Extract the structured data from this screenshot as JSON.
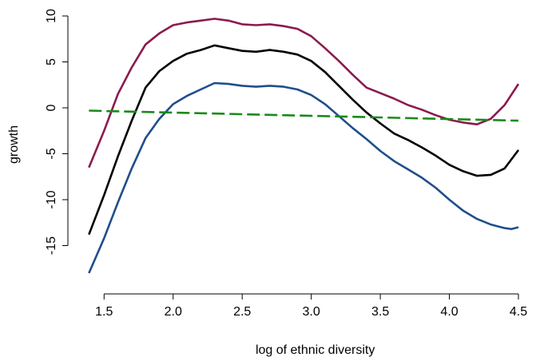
{
  "chart_data": {
    "type": "line",
    "title": "",
    "xlabel": "log of ethnic diversity",
    "ylabel": "growth",
    "xlim": [
      1.4,
      4.5
    ],
    "ylim": [
      -18,
      10
    ],
    "xticks": [
      1.5,
      2.0,
      2.5,
      3.0,
      3.5,
      4.0,
      4.5
    ],
    "xtick_labels": [
      "1.5",
      "2.0",
      "2.5",
      "3.0",
      "3.5",
      "4.0",
      "4.5"
    ],
    "yticks": [
      10,
      5,
      0,
      -5,
      -10,
      -15
    ],
    "ytick_labels": [
      "10",
      "5",
      "0",
      "-5",
      "-10",
      "-15"
    ],
    "grid": false,
    "series": [
      {
        "color": "#8b1a4f",
        "style": "solid",
        "x": [
          1.39,
          1.5,
          1.6,
          1.7,
          1.8,
          1.9,
          2.0,
          2.1,
          2.2,
          2.3,
          2.4,
          2.5,
          2.6,
          2.7,
          2.8,
          2.9,
          3.0,
          3.1,
          3.2,
          3.3,
          3.4,
          3.5,
          3.6,
          3.7,
          3.8,
          3.9,
          4.0,
          4.1,
          4.2,
          4.3,
          4.4,
          4.5
        ],
        "y": [
          -6.5,
          -2.5,
          1.5,
          4.4,
          6.9,
          8.1,
          9.0,
          9.3,
          9.5,
          9.7,
          9.5,
          9.1,
          9.0,
          9.1,
          8.9,
          8.6,
          7.8,
          6.5,
          5.1,
          3.6,
          2.2,
          1.6,
          1.0,
          0.3,
          -0.2,
          -0.8,
          -1.3,
          -1.6,
          -1.8,
          -1.2,
          0.3,
          2.6
        ]
      },
      {
        "color": "#000000",
        "style": "solid",
        "x": [
          1.39,
          1.5,
          1.6,
          1.7,
          1.8,
          1.9,
          2.0,
          2.1,
          2.2,
          2.3,
          2.4,
          2.5,
          2.6,
          2.7,
          2.8,
          2.9,
          3.0,
          3.1,
          3.2,
          3.3,
          3.4,
          3.5,
          3.6,
          3.7,
          3.8,
          3.9,
          4.0,
          4.1,
          4.2,
          4.3,
          4.4,
          4.5
        ],
        "y": [
          -13.8,
          -9.5,
          -5.3,
          -1.4,
          2.2,
          4.0,
          5.1,
          5.9,
          6.3,
          6.8,
          6.5,
          6.2,
          6.1,
          6.3,
          6.1,
          5.8,
          5.1,
          3.9,
          2.4,
          0.9,
          -0.5,
          -1.7,
          -2.8,
          -3.5,
          -4.3,
          -5.2,
          -6.2,
          -6.9,
          -7.4,
          -7.3,
          -6.6,
          -4.6
        ]
      },
      {
        "color": "#1f4e8c",
        "style": "solid",
        "x": [
          1.39,
          1.5,
          1.6,
          1.7,
          1.8,
          1.9,
          2.0,
          2.1,
          2.2,
          2.3,
          2.4,
          2.5,
          2.6,
          2.7,
          2.8,
          2.9,
          3.0,
          3.1,
          3.2,
          3.3,
          3.4,
          3.5,
          3.6,
          3.7,
          3.8,
          3.9,
          4.0,
          4.1,
          4.2,
          4.3,
          4.4,
          4.45,
          4.5
        ],
        "y": [
          -18.0,
          -14.2,
          -10.3,
          -6.6,
          -3.3,
          -1.2,
          0.4,
          1.3,
          2.0,
          2.7,
          2.6,
          2.4,
          2.3,
          2.4,
          2.3,
          2.0,
          1.4,
          0.4,
          -0.9,
          -2.2,
          -3.4,
          -4.7,
          -5.8,
          -6.7,
          -7.6,
          -8.7,
          -10.0,
          -11.2,
          -12.1,
          -12.7,
          -13.1,
          -13.2,
          -13.0
        ]
      },
      {
        "color": "#1a8a1a",
        "style": "dashed",
        "x": [
          1.39,
          4.5
        ],
        "y": [
          -0.3,
          -1.4
        ]
      }
    ]
  }
}
